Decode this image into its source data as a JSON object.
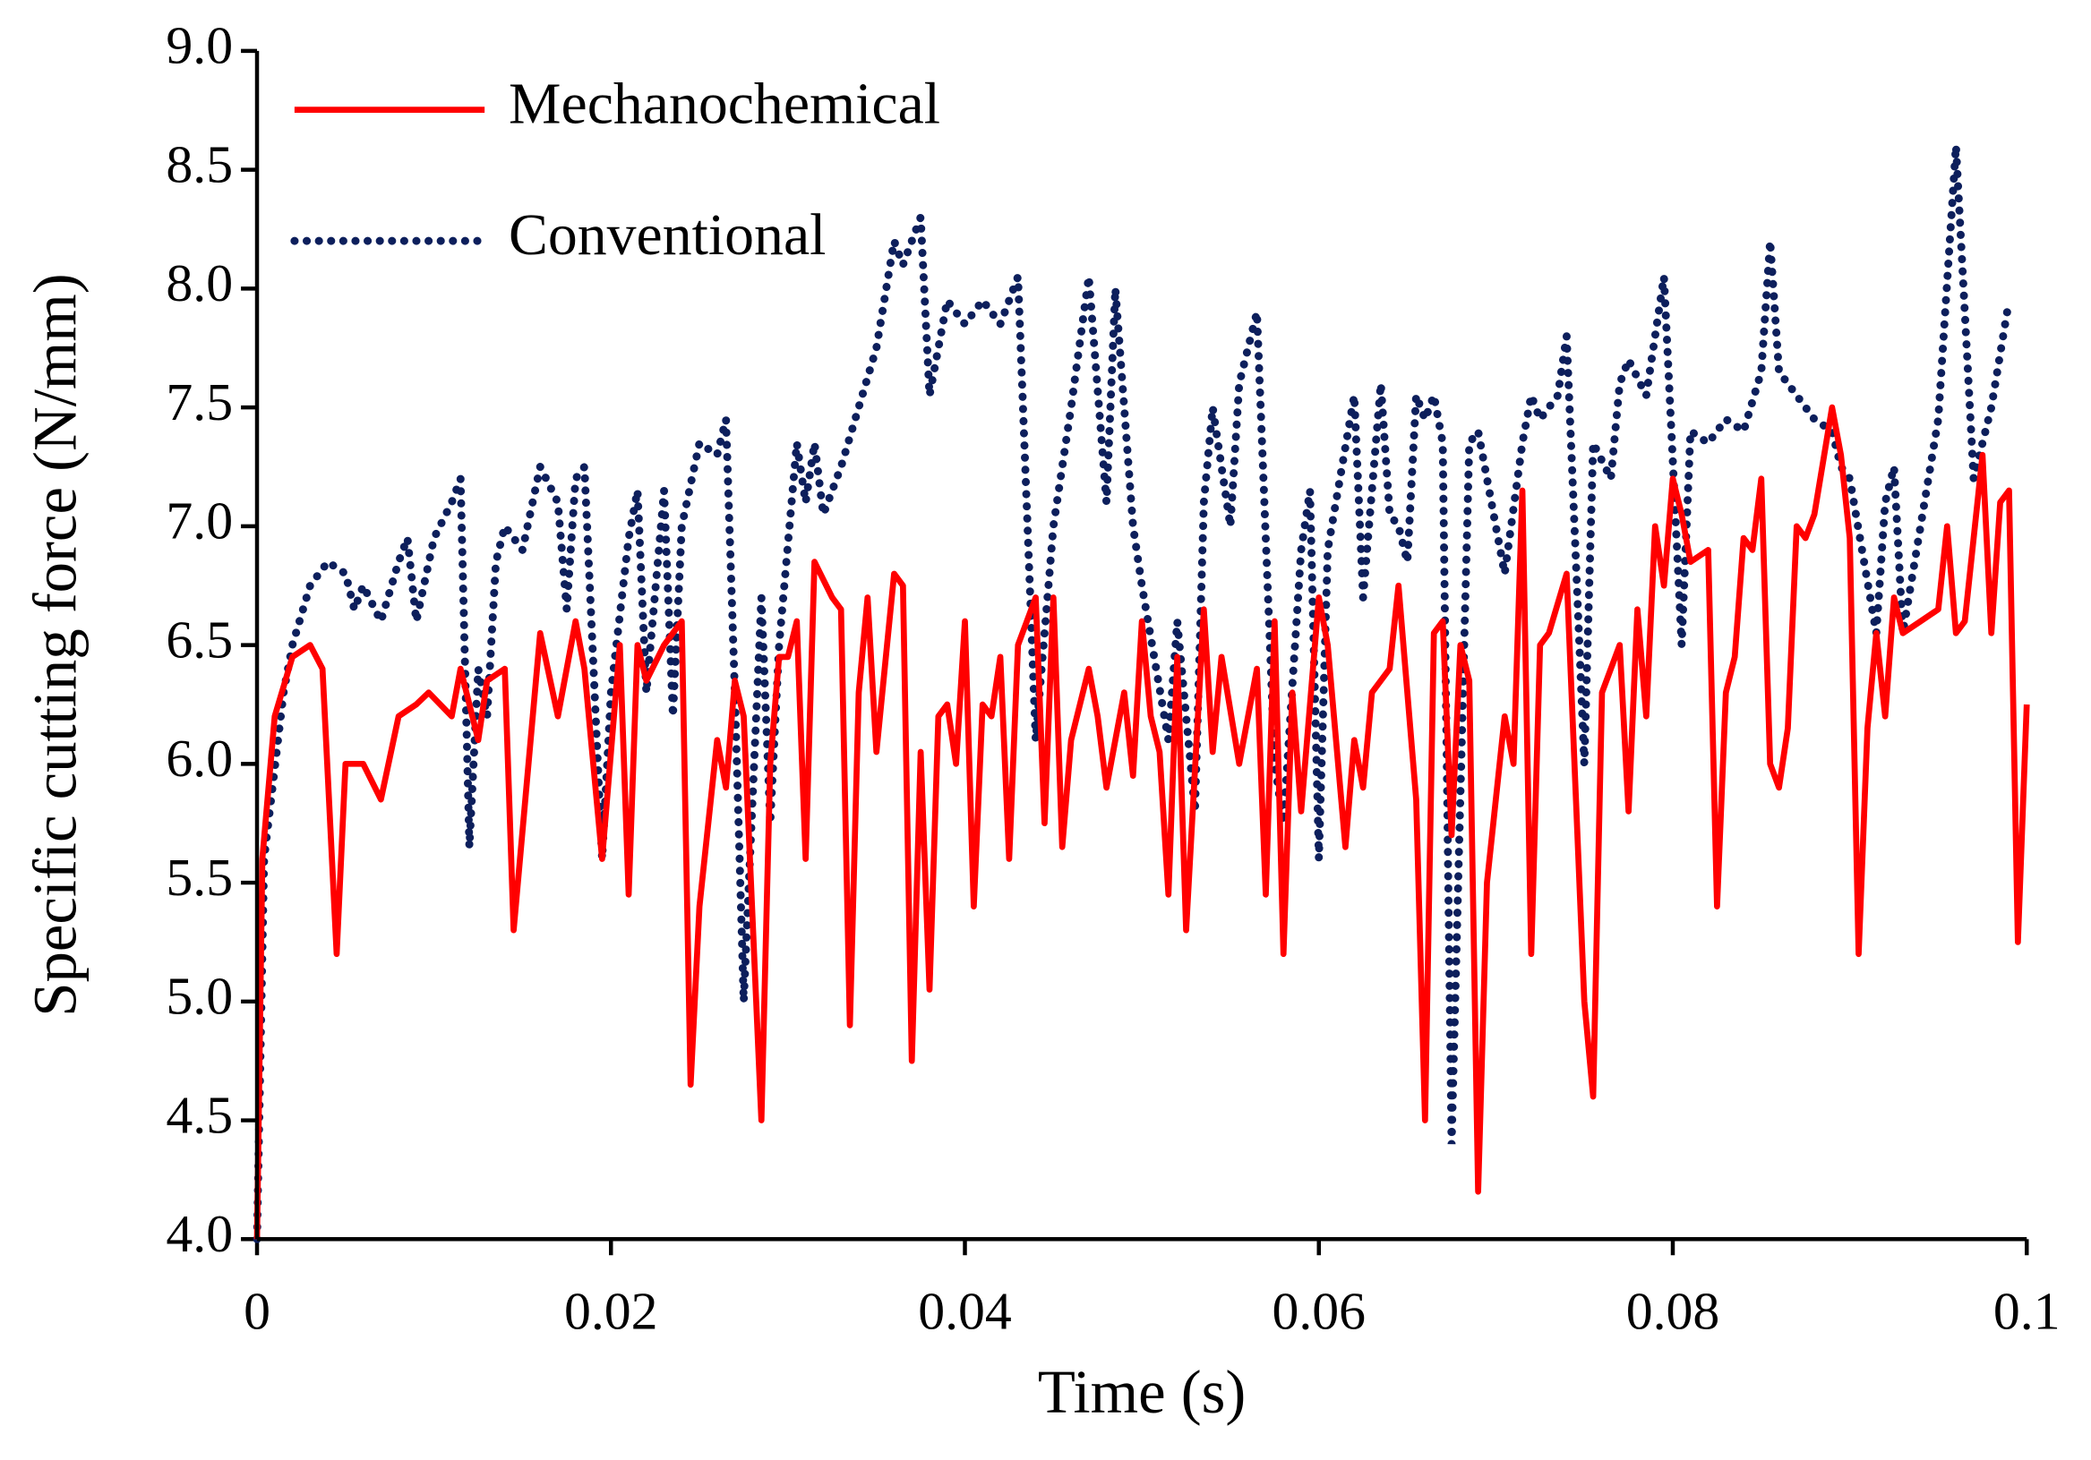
{
  "chart_data": {
    "type": "line",
    "x_label": "Time (s)",
    "y_label": "Specific cutting force (N/mm)",
    "xlim": [
      0,
      0.1
    ],
    "xticks": [
      0,
      0.02,
      0.04,
      0.06,
      0.08,
      0.1
    ],
    "ylim": [
      4,
      9
    ],
    "yticks": [
      {
        "value": 4,
        "label": "4.0"
      },
      {
        "value": 4.5,
        "label": "4.5"
      },
      {
        "value": 5,
        "label": "5.0"
      },
      {
        "value": 5.5,
        "label": "5.5"
      },
      {
        "value": 6,
        "label": "6.0"
      },
      {
        "value": 6.5,
        "label": "6.5"
      },
      {
        "value": 7,
        "label": "7.0"
      },
      {
        "value": 7.5,
        "label": "7.5"
      },
      {
        "value": 8,
        "label": "8.0"
      },
      {
        "value": 8.5,
        "label": "8.5"
      },
      {
        "value": 9,
        "label": "9.0"
      }
    ],
    "legend": "upper left",
    "series": [
      {
        "name": "Mechanochemical",
        "color": "#ff0000",
        "style": "solid",
        "x": [
          0,
          0.0003,
          0.001,
          0.002,
          0.003,
          0.0037,
          0.0045,
          0.005,
          0.006,
          0.007,
          0.008,
          0.009,
          0.0097,
          0.011,
          0.0115,
          0.0125,
          0.013,
          0.014,
          0.0145,
          0.016,
          0.017,
          0.018,
          0.0185,
          0.0195,
          0.0205,
          0.021,
          0.0215,
          0.022,
          0.023,
          0.0235,
          0.024,
          0.0245,
          0.025,
          0.026,
          0.0265,
          0.027,
          0.0275,
          0.0285,
          0.029,
          0.0295,
          0.03,
          0.0305,
          0.031,
          0.0315,
          0.0325,
          0.033,
          0.0335,
          0.034,
          0.0345,
          0.035,
          0.036,
          0.0365,
          0.037,
          0.0375,
          0.038,
          0.0385,
          0.039,
          0.0395,
          0.04,
          0.0405,
          0.041,
          0.0415,
          0.042,
          0.0425,
          0.043,
          0.044,
          0.0445,
          0.045,
          0.0455,
          0.046,
          0.047,
          0.0475,
          0.048,
          0.049,
          0.0495,
          0.05,
          0.0505,
          0.051,
          0.0515,
          0.052,
          0.0525,
          0.0535,
          0.054,
          0.0545,
          0.0555,
          0.0565,
          0.057,
          0.0575,
          0.058,
          0.0585,
          0.059,
          0.06,
          0.0605,
          0.0615,
          0.062,
          0.0625,
          0.063,
          0.064,
          0.0645,
          0.0655,
          0.066,
          0.0665,
          0.067,
          0.0675,
          0.068,
          0.0685,
          0.069,
          0.0695,
          0.0705,
          0.071,
          0.0715,
          0.072,
          0.0725,
          0.073,
          0.074,
          0.075,
          0.0755,
          0.076,
          0.077,
          0.0775,
          0.078,
          0.0785,
          0.079,
          0.0795,
          0.08,
          0.0805,
          0.081,
          0.082,
          0.0825,
          0.083,
          0.0835,
          0.084,
          0.0845,
          0.085,
          0.0855,
          0.086,
          0.0865,
          0.087,
          0.0875,
          0.088,
          0.089,
          0.0895,
          0.09,
          0.0905,
          0.091,
          0.0915,
          0.092,
          0.0925,
          0.093,
          0.094,
          0.095,
          0.0955,
          0.096,
          0.0965,
          0.0975,
          0.098,
          0.0985,
          0.099,
          0.0995,
          0.1
        ],
        "values": [
          4,
          5.6,
          6.2,
          6.45,
          6.5,
          6.4,
          5.2,
          6,
          6,
          5.85,
          6.2,
          6.25,
          6.3,
          6.2,
          6.4,
          6.1,
          6.35,
          6.4,
          5.3,
          6.55,
          6.2,
          6.6,
          6.4,
          5.6,
          6.5,
          5.45,
          6.5,
          6.35,
          6.5,
          6.55,
          6.6,
          4.65,
          5.4,
          6.1,
          5.9,
          6.35,
          6.2,
          4.5,
          6,
          6.45,
          6.45,
          6.6,
          5.6,
          6.85,
          6.7,
          6.65,
          4.9,
          6.3,
          6.7,
          6.05,
          6.8,
          6.75,
          4.75,
          6.05,
          5.05,
          6.2,
          6.25,
          6,
          6.6,
          5.4,
          6.25,
          6.2,
          6.45,
          5.6,
          6.5,
          6.7,
          5.75,
          6.7,
          5.65,
          6.1,
          6.4,
          6.2,
          5.9,
          6.3,
          5.95,
          6.6,
          6.2,
          6.05,
          5.45,
          6.45,
          5.3,
          6.65,
          6.05,
          6.45,
          6,
          6.4,
          5.45,
          6.6,
          5.2,
          6.3,
          5.8,
          6.7,
          6.5,
          5.65,
          6.1,
          5.9,
          6.3,
          6.4,
          6.75,
          5.85,
          4.5,
          6.55,
          6.6,
          5.7,
          6.5,
          6.35,
          4.2,
          5.5,
          6.2,
          6,
          7.15,
          5.2,
          6.5,
          6.55,
          6.8,
          5,
          4.6,
          6.3,
          6.5,
          5.8,
          6.65,
          6.2,
          7,
          6.75,
          7.2,
          7.05,
          6.85,
          6.9,
          5.4,
          6.3,
          6.45,
          6.95,
          6.9,
          7.2,
          6,
          5.9,
          6.15,
          7,
          6.95,
          7.05,
          7.5,
          7.3,
          6.95,
          5.2,
          6.15,
          6.55,
          6.2,
          6.7,
          6.55,
          6.6,
          6.65,
          7,
          6.55,
          6.6,
          7.3,
          6.55,
          7.1,
          7.15,
          5.25,
          6.25
        ]
      },
      {
        "name": "Conventional",
        "color": "#0d1f5c",
        "style": "dotted",
        "x": [
          0,
          0.0004,
          0.0015,
          0.002,
          0.003,
          0.004,
          0.005,
          0.0055,
          0.006,
          0.007,
          0.008,
          0.0085,
          0.009,
          0.01,
          0.011,
          0.0115,
          0.012,
          0.0125,
          0.013,
          0.0135,
          0.014,
          0.015,
          0.016,
          0.017,
          0.0175,
          0.018,
          0.0185,
          0.0195,
          0.02,
          0.021,
          0.0215,
          0.022,
          0.023,
          0.0235,
          0.024,
          0.025,
          0.026,
          0.0265,
          0.027,
          0.0275,
          0.0285,
          0.029,
          0.0295,
          0.0305,
          0.031,
          0.0315,
          0.032,
          0.033,
          0.034,
          0.035,
          0.036,
          0.0365,
          0.0375,
          0.038,
          0.039,
          0.04,
          0.041,
          0.042,
          0.043,
          0.044,
          0.045,
          0.046,
          0.047,
          0.048,
          0.0485,
          0.0495,
          0.05,
          0.0515,
          0.052,
          0.053,
          0.0535,
          0.054,
          0.055,
          0.0555,
          0.0565,
          0.0575,
          0.058,
          0.059,
          0.0595,
          0.06,
          0.0605,
          0.062,
          0.0625,
          0.0635,
          0.064,
          0.0645,
          0.065,
          0.0655,
          0.066,
          0.0665,
          0.067,
          0.0675,
          0.0685,
          0.069,
          0.0705,
          0.0715,
          0.072,
          0.0725,
          0.0735,
          0.074,
          0.075,
          0.0755,
          0.0765,
          0.077,
          0.0775,
          0.0785,
          0.0795,
          0.0805,
          0.081,
          0.082,
          0.083,
          0.084,
          0.085,
          0.0855,
          0.086,
          0.087,
          0.088,
          0.089,
          0.0895,
          0.09,
          0.0915,
          0.092,
          0.0925,
          0.093,
          0.094,
          0.095,
          0.096,
          0.097,
          0.098,
          0.099
        ],
        "values": [
          4,
          5.6,
          6.3,
          6.5,
          6.75,
          6.85,
          6.8,
          6.65,
          6.75,
          6.6,
          6.85,
          6.95,
          6.6,
          6.95,
          7.1,
          7.2,
          5.65,
          6.4,
          6.2,
          6.85,
          7,
          6.9,
          7.25,
          7.1,
          6.65,
          7.2,
          7.25,
          5.6,
          6.3,
          6.95,
          7.15,
          6.3,
          7.15,
          6.2,
          7,
          7.35,
          7.3,
          7.45,
          6.3,
          5,
          6.7,
          5.75,
          6.5,
          7.35,
          7.1,
          7.35,
          7.05,
          7.25,
          7.5,
          7.75,
          8.2,
          8.1,
          8.3,
          7.55,
          7.95,
          7.85,
          7.95,
          7.85,
          8.05,
          6.1,
          7,
          7.5,
          8.05,
          7.1,
          8,
          7,
          6.75,
          6.1,
          6.6,
          5.8,
          7.1,
          7.5,
          7,
          7.6,
          7.9,
          6,
          5.75,
          6.9,
          7.15,
          5.6,
          6.9,
          7.55,
          6.7,
          7.6,
          7.05,
          7,
          6.85,
          7.55,
          7.45,
          7.55,
          7.35,
          4.4,
          7.35,
          7.4,
          6.8,
          7.35,
          7.55,
          7.45,
          7.55,
          7.8,
          6,
          7.35,
          7.2,
          7.6,
          7.7,
          7.55,
          8.05,
          6.5,
          7.4,
          7.35,
          7.45,
          7.4,
          7.65,
          8.2,
          7.65,
          7.55,
          7.45,
          7.4,
          7.25,
          7.2,
          6.55,
          7.1,
          7.25,
          6.55,
          7,
          7.45,
          8.6,
          7.2,
          7.5,
          7.95
        ]
      }
    ]
  }
}
